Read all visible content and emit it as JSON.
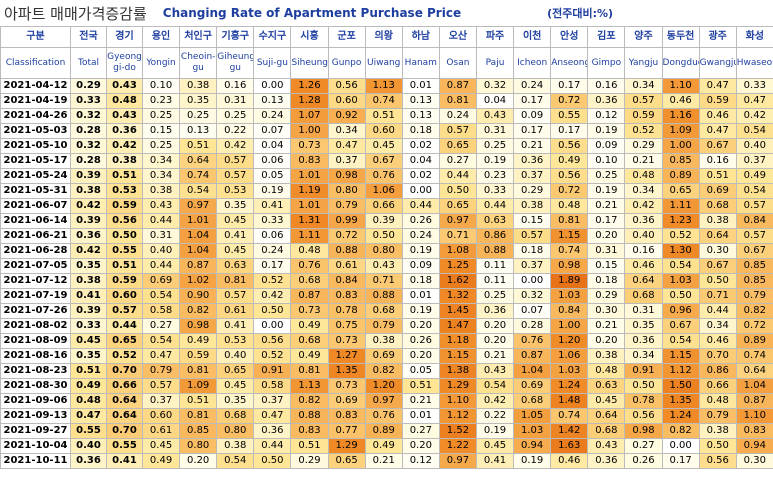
{
  "title_ko": "아파트 매매가격증감률",
  "title_en": "Changing Rate of Apartment Purchase Price",
  "unit": "(전주대비:%)",
  "table": {
    "header_ko": [
      "구분",
      "전국",
      "경기",
      "용인",
      "처인구",
      "기흥구",
      "수지구",
      "시흥",
      "군포",
      "의왕",
      "하남",
      "오산",
      "파주",
      "이천",
      "안성",
      "김포",
      "양주",
      "동두천",
      "광주",
      "화성"
    ],
    "header_en": [
      "Classification",
      "Total",
      "Gyeong gi-do",
      "Yongin",
      "Cheoin-gu",
      "Giheung-gu",
      "Suji-gu",
      "Siheung",
      "Gunpo",
      "Uiwang",
      "Hanam",
      "Osan",
      "Paju",
      "Icheon",
      "Anseong",
      "Gimpo",
      "Yangju",
      "Dongducheon",
      "Gwangju",
      "Hwaseong"
    ],
    "rows": [
      [
        "2021-04-12",
        "0.29",
        "0.43",
        "0.10",
        "0.38",
        "0.16",
        "0.00",
        "1.26",
        "0.56",
        "1.13",
        "0.01",
        "0.87",
        "0.32",
        "0.24",
        "0.17",
        "0.16",
        "0.34",
        "1.10",
        "0.47",
        "0.33"
      ],
      [
        "2021-04-19",
        "0.33",
        "0.48",
        "0.23",
        "0.35",
        "0.31",
        "0.13",
        "1.28",
        "0.60",
        "0.74",
        "0.13",
        "0.81",
        "0.04",
        "0.17",
        "0.72",
        "0.36",
        "0.57",
        "0.46",
        "0.59",
        "0.47"
      ],
      [
        "2021-04-26",
        "0.32",
        "0.43",
        "0.25",
        "0.25",
        "0.25",
        "0.24",
        "1.07",
        "0.92",
        "0.51",
        "0.13",
        "0.24",
        "0.43",
        "0.09",
        "0.55",
        "0.12",
        "0.59",
        "1.16",
        "0.46",
        "0.42"
      ],
      [
        "2021-05-03",
        "0.28",
        "0.36",
        "0.15",
        "0.13",
        "0.22",
        "0.07",
        "1.00",
        "0.34",
        "0.60",
        "0.18",
        "0.57",
        "0.31",
        "0.17",
        "0.17",
        "0.19",
        "0.52",
        "1.09",
        "0.47",
        "0.54"
      ],
      [
        "2021-05-10",
        "0.32",
        "0.42",
        "0.25",
        "0.51",
        "0.42",
        "0.04",
        "0.73",
        "0.47",
        "0.45",
        "0.02",
        "0.65",
        "0.25",
        "0.21",
        "0.56",
        "0.09",
        "0.29",
        "1.00",
        "0.67",
        "0.40"
      ],
      [
        "2021-05-17",
        "0.28",
        "0.38",
        "0.34",
        "0.64",
        "0.57",
        "0.06",
        "0.83",
        "0.37",
        "0.67",
        "0.04",
        "0.27",
        "0.19",
        "0.36",
        "0.49",
        "0.10",
        "0.21",
        "0.85",
        "0.16",
        "0.37"
      ],
      [
        "2021-05-24",
        "0.39",
        "0.51",
        "0.34",
        "0.74",
        "0.57",
        "0.05",
        "1.01",
        "0.98",
        "0.76",
        "0.02",
        "0.44",
        "0.23",
        "0.37",
        "0.56",
        "0.25",
        "0.48",
        "0.89",
        "0.51",
        "0.49"
      ],
      [
        "2021-05-31",
        "0.38",
        "0.53",
        "0.38",
        "0.54",
        "0.53",
        "0.19",
        "1.19",
        "0.80",
        "1.06",
        "0.00",
        "0.50",
        "0.33",
        "0.29",
        "0.72",
        "0.19",
        "0.34",
        "0.65",
        "0.69",
        "0.54"
      ],
      [
        "2021-06-07",
        "0.42",
        "0.59",
        "0.43",
        "0.97",
        "0.35",
        "0.41",
        "1.01",
        "0.79",
        "0.66",
        "0.44",
        "0.65",
        "0.44",
        "0.38",
        "0.48",
        "0.21",
        "0.42",
        "1.11",
        "0.68",
        "0.57"
      ],
      [
        "2021-06-14",
        "0.39",
        "0.56",
        "0.44",
        "1.01",
        "0.45",
        "0.33",
        "1.31",
        "0.99",
        "0.39",
        "0.26",
        "0.97",
        "0.63",
        "0.15",
        "0.81",
        "0.17",
        "0.36",
        "1.23",
        "0.38",
        "0.84"
      ],
      [
        "2021-06-21",
        "0.36",
        "0.50",
        "0.31",
        "1.04",
        "0.41",
        "0.06",
        "1.11",
        "0.72",
        "0.50",
        "0.24",
        "0.71",
        "0.86",
        "0.57",
        "1.15",
        "0.20",
        "0.40",
        "0.52",
        "0.64",
        "0.57"
      ],
      [
        "2021-06-28",
        "0.42",
        "0.55",
        "0.40",
        "1.04",
        "0.45",
        "0.24",
        "0.48",
        "0.88",
        "0.80",
        "0.19",
        "1.08",
        "0.88",
        "0.18",
        "0.74",
        "0.31",
        "0.16",
        "1.30",
        "0.30",
        "0.67"
      ],
      [
        "2021-07-05",
        "0.35",
        "0.51",
        "0.44",
        "0.87",
        "0.63",
        "0.17",
        "0.76",
        "0.61",
        "0.43",
        "0.09",
        "1.25",
        "0.11",
        "0.37",
        "0.98",
        "0.15",
        "0.46",
        "0.54",
        "0.67",
        "0.85"
      ],
      [
        "2021-07-12",
        "0.38",
        "0.59",
        "0.69",
        "1.02",
        "0.81",
        "0.52",
        "0.68",
        "0.84",
        "0.71",
        "0.18",
        "1.62",
        "0.11",
        "0.00",
        "1.89",
        "0.18",
        "0.64",
        "1.03",
        "0.50",
        "0.85"
      ],
      [
        "2021-07-19",
        "0.41",
        "0.60",
        "0.54",
        "0.90",
        "0.57",
        "0.42",
        "0.87",
        "0.83",
        "0.88",
        "0.01",
        "1.32",
        "0.25",
        "0.32",
        "1.03",
        "0.29",
        "0.68",
        "0.50",
        "0.71",
        "0.79"
      ],
      [
        "2021-07-26",
        "0.39",
        "0.57",
        "0.58",
        "0.82",
        "0.61",
        "0.50",
        "0.73",
        "0.78",
        "0.68",
        "0.19",
        "1.45",
        "0.36",
        "0.07",
        "0.84",
        "0.30",
        "0.31",
        "0.96",
        "0.44",
        "0.82"
      ],
      [
        "2021-08-02",
        "0.33",
        "0.44",
        "0.27",
        "0.98",
        "0.41",
        "0.00",
        "0.49",
        "0.75",
        "0.79",
        "0.20",
        "1.47",
        "0.20",
        "0.28",
        "1.00",
        "0.21",
        "0.35",
        "0.67",
        "0.34",
        "0.72"
      ],
      [
        "2021-08-09",
        "0.45",
        "0.65",
        "0.54",
        "0.49",
        "0.53",
        "0.56",
        "0.68",
        "0.73",
        "0.38",
        "0.26",
        "1.18",
        "0.20",
        "0.76",
        "1.20",
        "0.20",
        "0.36",
        "0.54",
        "0.46",
        "0.89"
      ],
      [
        "2021-08-16",
        "0.35",
        "0.52",
        "0.47",
        "0.59",
        "0.40",
        "0.52",
        "0.49",
        "1.27",
        "0.69",
        "0.20",
        "1.15",
        "0.21",
        "0.87",
        "1.06",
        "0.38",
        "0.34",
        "1.15",
        "0.70",
        "0.74"
      ],
      [
        "2021-08-23",
        "0.51",
        "0.70",
        "0.79",
        "0.81",
        "0.65",
        "0.91",
        "0.81",
        "1.35",
        "0.82",
        "0.05",
        "1.38",
        "0.43",
        "1.04",
        "1.03",
        "0.48",
        "0.91",
        "1.12",
        "0.86",
        "0.64"
      ],
      [
        "2021-08-30",
        "0.49",
        "0.66",
        "0.57",
        "1.09",
        "0.45",
        "0.58",
        "1.13",
        "0.73",
        "1.20",
        "0.51",
        "1.29",
        "0.54",
        "0.69",
        "1.24",
        "0.63",
        "0.50",
        "1.50",
        "0.66",
        "1.04"
      ],
      [
        "2021-09-06",
        "0.48",
        "0.64",
        "0.37",
        "0.51",
        "0.35",
        "0.37",
        "0.82",
        "0.69",
        "0.97",
        "0.21",
        "1.10",
        "0.42",
        "0.68",
        "1.48",
        "0.45",
        "0.78",
        "1.35",
        "0.48",
        "0.87"
      ],
      [
        "2021-09-13",
        "0.47",
        "0.64",
        "0.60",
        "0.81",
        "0.68",
        "0.47",
        "0.88",
        "0.83",
        "0.76",
        "0.01",
        "1.12",
        "0.22",
        "1.05",
        "0.74",
        "0.64",
        "0.56",
        "1.24",
        "0.79",
        "1.10"
      ],
      [
        "2021-09-27",
        "0.55",
        "0.70",
        "0.61",
        "0.85",
        "0.80",
        "0.36",
        "0.83",
        "0.77",
        "0.89",
        "0.27",
        "1.52",
        "0.19",
        "1.03",
        "1.42",
        "0.68",
        "0.98",
        "0.82",
        "0.38",
        "0.83"
      ],
      [
        "2021-10-04",
        "0.40",
        "0.55",
        "0.45",
        "0.80",
        "0.38",
        "0.44",
        "0.51",
        "1.29",
        "0.49",
        "0.20",
        "1.22",
        "0.45",
        "0.94",
        "1.63",
        "0.43",
        "0.27",
        "0.00",
        "0.50",
        "0.94"
      ],
      [
        "2021-10-11",
        "0.36",
        "0.41",
        "0.49",
        "0.20",
        "0.54",
        "0.50",
        "0.29",
        "0.65",
        "0.21",
        "0.12",
        "0.97",
        "0.41",
        "0.19",
        "0.46",
        "0.36",
        "0.26",
        "0.17",
        "0.56",
        "0.30"
      ]
    ]
  }
}
